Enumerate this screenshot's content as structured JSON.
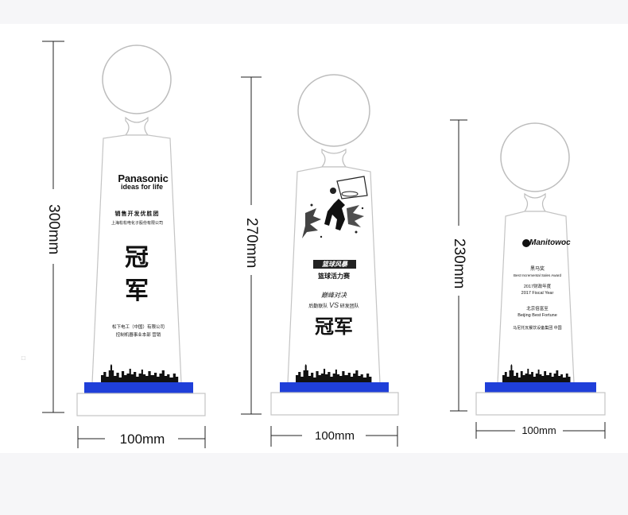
{
  "colors": {
    "base_blue": "#1f3fd9",
    "skyline": "#111111",
    "outline": "#bdbdbd",
    "dim_line": "#222222"
  },
  "trophy1": {
    "height_label": "300mm",
    "width_label": "100mm",
    "brand": "Panasonic",
    "brand_sub": "ideas for life",
    "honor_title": "销售开发优胜团",
    "company_small": "上海松松电化子股份有限公司",
    "champion_1": "冠",
    "champion_2": "军",
    "issuer_1": "松下电工（中国）有限公司",
    "issuer_2": "控制机器事业本部 营销"
  },
  "trophy2": {
    "height_label": "270mm",
    "width_label": "100mm",
    "event_logo": "篮球风暴",
    "event_title": "篮球活力赛",
    "final_label": "巅峰对决",
    "team_left": "后勤联队",
    "vs": "VS",
    "team_right": "研发团队",
    "champion": "冠军"
  },
  "trophy3": {
    "height_label": "230mm",
    "width_label": "100mm",
    "brand": "Manitowoc",
    "award_cn": "黑马奖",
    "award_en": "Best Incremental Sales Award",
    "year_cn": "2017财政年度",
    "year_en": "2017 Fiscal Year",
    "winner_cn": "北京倍富至",
    "winner_en": "Beijing Best Fortune",
    "issuer": "马尼托瓦餐饮设备集团 中国"
  },
  "misc": {
    "dot": "□"
  }
}
